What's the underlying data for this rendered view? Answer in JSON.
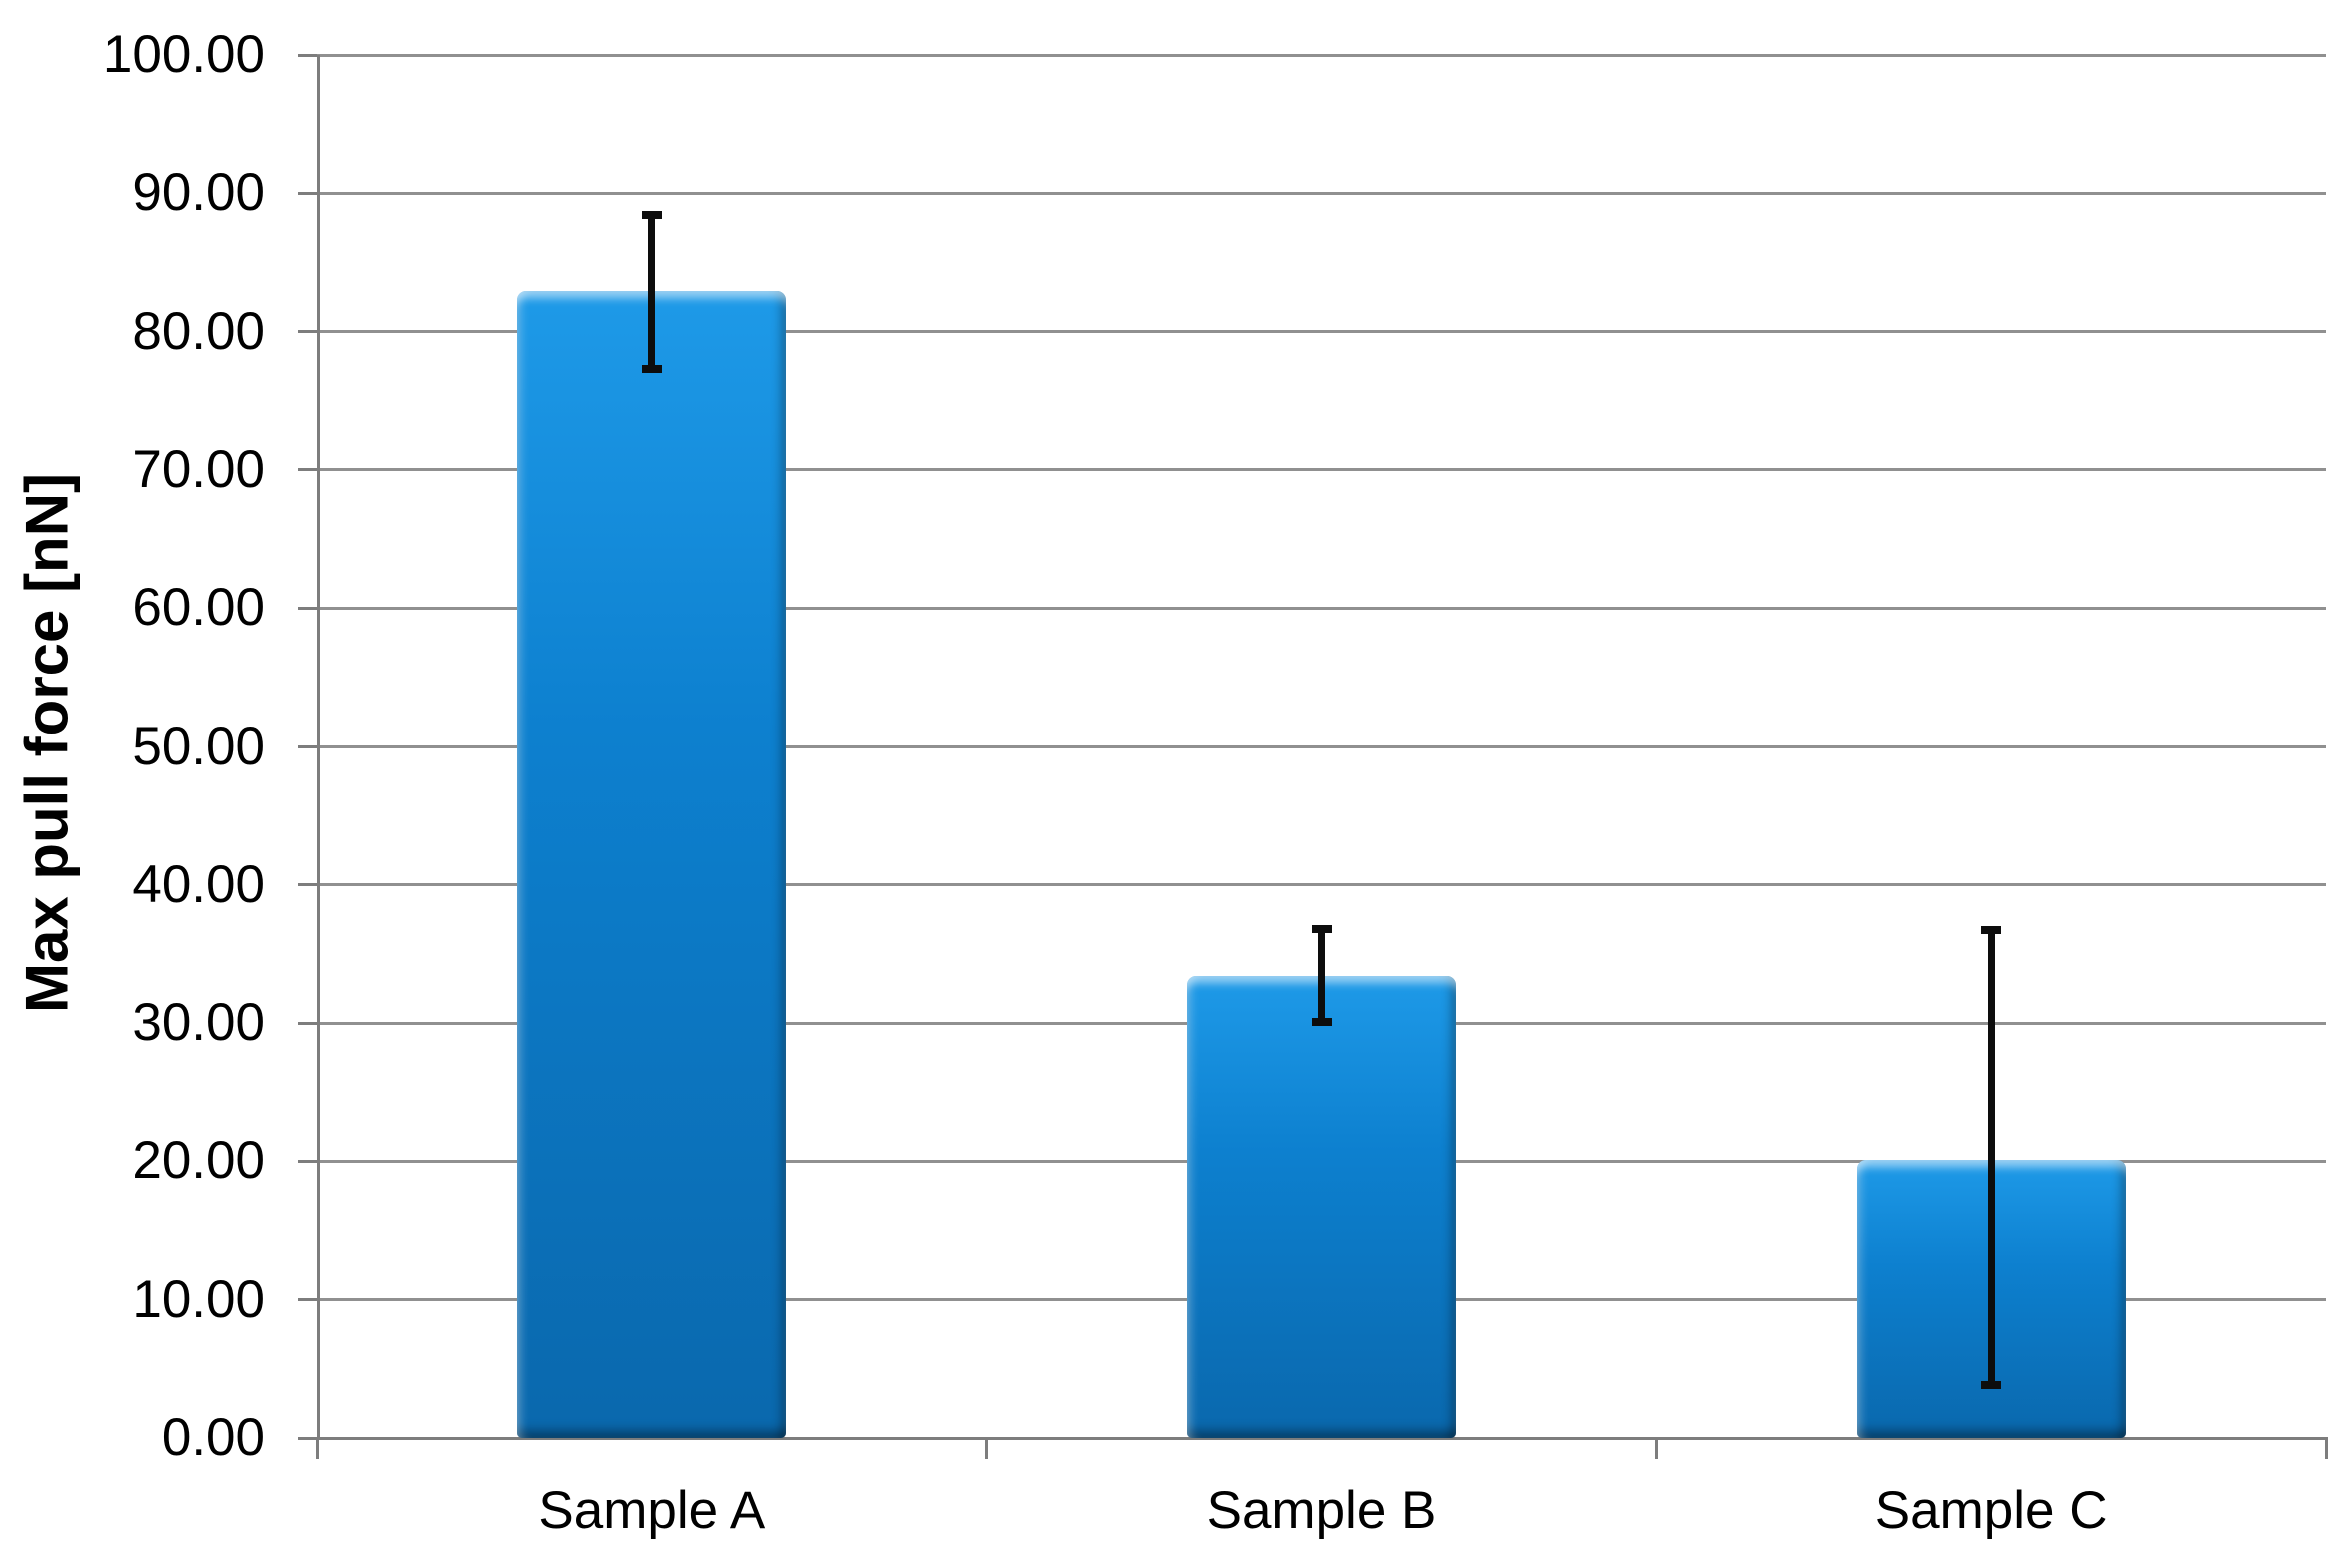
{
  "chart_data": {
    "type": "bar",
    "title": "",
    "xlabel": "",
    "ylabel": "Max pull force [nN]",
    "categories": [
      "Sample A",
      "Sample B",
      "Sample C"
    ],
    "values": [
      82.9,
      33.4,
      20.1
    ],
    "error_plus": [
      5.5,
      3.4,
      16.6
    ],
    "error_minus": [
      5.6,
      3.3,
      16.3
    ],
    "ylim": [
      0,
      100
    ],
    "ytick_step": 10,
    "ytick_labels": [
      "0.00",
      "10.00",
      "20.00",
      "30.00",
      "40.00",
      "50.00",
      "60.00",
      "70.00",
      "80.00",
      "90.00",
      "100.00"
    ],
    "grid": true,
    "legend_position": "none",
    "colors": {
      "bar_top": "#1e9ae8",
      "bar_mid": "#0d80cf",
      "bar_bottom": "#0a68ad",
      "gridline": "#909090",
      "axis": "#7d7d7d",
      "error_bar": "#0d0d0d",
      "label_text": "#000000"
    }
  }
}
